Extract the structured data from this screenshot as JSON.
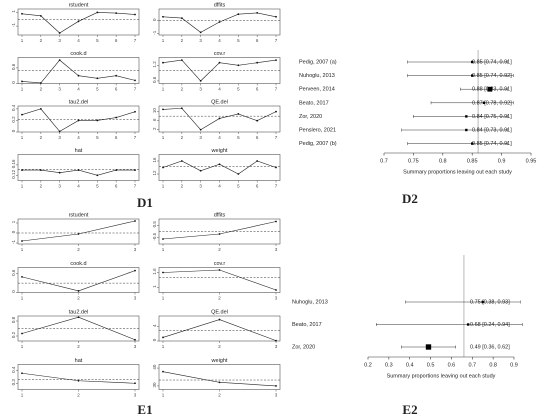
{
  "chart_data": [
    {
      "type": "influence",
      "label": "D1",
      "x": [
        1,
        2,
        3,
        4,
        5,
        6,
        7
      ],
      "xticks": [
        1,
        2,
        3,
        4,
        5,
        6,
        7
      ],
      "panels": [
        {
          "title": "rstudent",
          "values": [
            0.8,
            0.5,
            -2.0,
            -0.3,
            1.0,
            0.9,
            0.7
          ],
          "ylim": [
            -2.3,
            1.5
          ],
          "yticks": [
            -1,
            1
          ],
          "refline": 0
        },
        {
          "title": "dffits",
          "values": [
            0.3,
            0.2,
            -0.9,
            -0.1,
            0.5,
            0.6,
            0.3
          ],
          "ylim": [
            -1.1,
            0.9
          ],
          "yticks": [
            -1,
            0
          ],
          "refline": 0
        },
        {
          "title": "cook.d",
          "values": [
            0.08,
            0.02,
            0.9,
            0.3,
            0.2,
            0.3,
            0.12
          ],
          "ylim": [
            0,
            1
          ],
          "yticks": [
            0,
            0.6
          ],
          "refline": 0.5
        },
        {
          "title": "cov.r",
          "values": [
            1.3,
            1.4,
            0.6,
            1.3,
            1.2,
            1.3,
            1.4
          ],
          "ylim": [
            0.5,
            1.5
          ],
          "yticks": [
            0.6,
            1.2
          ],
          "refline": 1
        },
        {
          "title": "tau2.del",
          "values": [
            0.3,
            0.4,
            0.01,
            0.2,
            0.2,
            0.25,
            0.35
          ],
          "ylim": [
            0,
            0.45
          ],
          "yticks": [
            0,
            0.2,
            0.4
          ],
          "refline": 0.22
        },
        {
          "title": "QE.del",
          "values": [
            11,
            11.5,
            2,
            7,
            9,
            6,
            10
          ],
          "ylim": [
            1,
            12.5
          ],
          "yticks": [
            2,
            6,
            10
          ],
          "refline": 8
        },
        {
          "title": "hat",
          "values": [
            0.14,
            0.14,
            0.13,
            0.14,
            0.12,
            0.14,
            0.14
          ],
          "ylim": [
            0.1,
            0.2
          ],
          "yticks": [
            0.12,
            0.16
          ],
          "refline": 0.143
        },
        {
          "title": "weight",
          "values": [
            14,
            16,
            13,
            15,
            12,
            16,
            14
          ],
          "ylim": [
            10,
            18
          ],
          "yticks": [
            12,
            16
          ],
          "refline": 14.3
        }
      ]
    },
    {
      "type": "forest",
      "label": "D2",
      "studies": [
        "Pedig, 2007 (a)",
        "Nuhoglu, 2013",
        "Perveen, 2014",
        "Beato, 2017",
        "Zor, 2020",
        "Penslero, 2021",
        "Pedig, 2007 (b)"
      ],
      "values": [
        0.85,
        0.85,
        0.88,
        0.87,
        0.84,
        0.84,
        0.85
      ],
      "lower": [
        0.74,
        0.74,
        0.83,
        0.78,
        0.75,
        0.73,
        0.74
      ],
      "upper": [
        0.91,
        0.92,
        0.91,
        0.92,
        0.91,
        0.91,
        0.91
      ],
      "value_labels": [
        "0.85 [0.74, 0.91]",
        "0.85 [0.74, 0.92]",
        "0.88 [0.83, 0.91]",
        "0.87 [0.78, 0.92]",
        "0.84 [0.75, 0.91]",
        "0.84 [0.73, 0.91]",
        "0.85 [0.74, 0.91]"
      ],
      "weights": [
        1,
        1,
        4,
        1,
        1,
        1,
        1
      ],
      "xlim": [
        0.7,
        0.95
      ],
      "xticks": [
        0.7,
        0.75,
        0.8,
        0.85,
        0.9,
        0.95
      ],
      "refline": 0.86,
      "xlabel": "Summary proportions leaving out each study"
    },
    {
      "type": "influence",
      "label": "E1",
      "x": [
        1,
        2,
        3
      ],
      "xticks": [
        1,
        2,
        3
      ],
      "panels": [
        {
          "title": "rstudent",
          "values": [
            -0.8,
            -0.1,
            1.2
          ],
          "ylim": [
            -1.1,
            1.4
          ],
          "yticks": [
            -1,
            0,
            1
          ],
          "refline": 0
        },
        {
          "title": "dffits",
          "values": [
            -0.6,
            -0.2,
            0.8
          ],
          "ylim": [
            -1,
            1
          ],
          "yticks": [
            -0.5,
            0.5
          ],
          "refline": 0
        },
        {
          "title": "cook.d",
          "values": [
            0.5,
            0.05,
            0.7
          ],
          "ylim": [
            0,
            0.8
          ],
          "yticks": [
            0,
            0.6
          ],
          "refline": 0.3
        },
        {
          "title": "cov.r",
          "values": [
            1.6,
            1.7,
            0.9
          ],
          "ylim": [
            0.8,
            1.8
          ],
          "yticks": [
            1,
            1.6
          ],
          "refline": 1.4
        },
        {
          "title": "tau2.del",
          "values": [
            0.3,
            0.95,
            0.05
          ],
          "ylim": [
            0,
            1
          ],
          "yticks": [
            0.2,
            0.8
          ],
          "refline": 0.5
        },
        {
          "title": "QE.del",
          "values": [
            1,
            6,
            0.1
          ],
          "ylim": [
            0,
            7
          ],
          "yticks": [
            0,
            4
          ],
          "refline": 3
        },
        {
          "title": "hat",
          "values": [
            0.38,
            0.32,
            0.3
          ],
          "ylim": [
            0.25,
            0.45
          ],
          "yticks": [
            0.3,
            0.4
          ],
          "refline": 0.33
        },
        {
          "title": "weight",
          "values": [
            38,
            32,
            30
          ],
          "ylim": [
            28,
            42
          ],
          "yticks": [
            30,
            40
          ],
          "refline": 33.3
        }
      ]
    },
    {
      "type": "forest",
      "label": "E2",
      "studies": [
        "Nuhoglu, 2013",
        "Beato, 2017",
        "Zor, 2020"
      ],
      "values": [
        0.75,
        0.68,
        0.49
      ],
      "lower": [
        0.38,
        0.24,
        0.36
      ],
      "upper": [
        0.93,
        0.94,
        0.62
      ],
      "value_labels": [
        "0.75 [0.38, 0.93]",
        "0.68 [0.24, 0.94]",
        "0.49 [0.36, 0.62]"
      ],
      "weights": [
        1,
        1,
        5
      ],
      "xlim": [
        0.2,
        0.9
      ],
      "xticks": [
        0.2,
        0.3,
        0.4,
        0.5,
        0.6,
        0.7,
        0.8,
        0.9
      ],
      "refline": 0.66,
      "xlabel": "Summary proportions leaving out each study"
    }
  ]
}
